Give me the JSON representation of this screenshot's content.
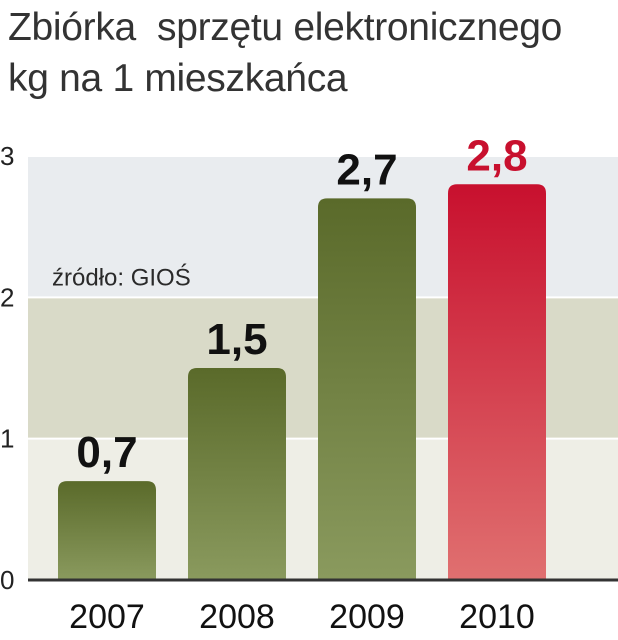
{
  "chart_data": {
    "type": "bar",
    "title_line1": "Zbiórka  sprzętu elektronicznego",
    "title_line2": "kg na 1 mieszkańca",
    "categories": [
      "2007",
      "2008",
      "2009",
      "2010"
    ],
    "values": [
      0.7,
      1.5,
      2.7,
      2.8
    ],
    "value_labels": [
      "0,7",
      "1,5",
      "2,7",
      "2,8"
    ],
    "yticks": [
      0,
      1,
      2,
      3
    ],
    "ylim": [
      0,
      3
    ],
    "source": "źródło: GIOŚ",
    "grid": true,
    "colors": {
      "bar": "#5a6a2a",
      "bar_light": "#8a9a5e",
      "highlight": "#c8102e",
      "highlight_light": "#e07070",
      "highlight_label": "#c8102e",
      "label": "#111111",
      "band_top": "#e9ecef",
      "band_mid": "#d9dac8",
      "band_low": "#eeeee6"
    }
  }
}
